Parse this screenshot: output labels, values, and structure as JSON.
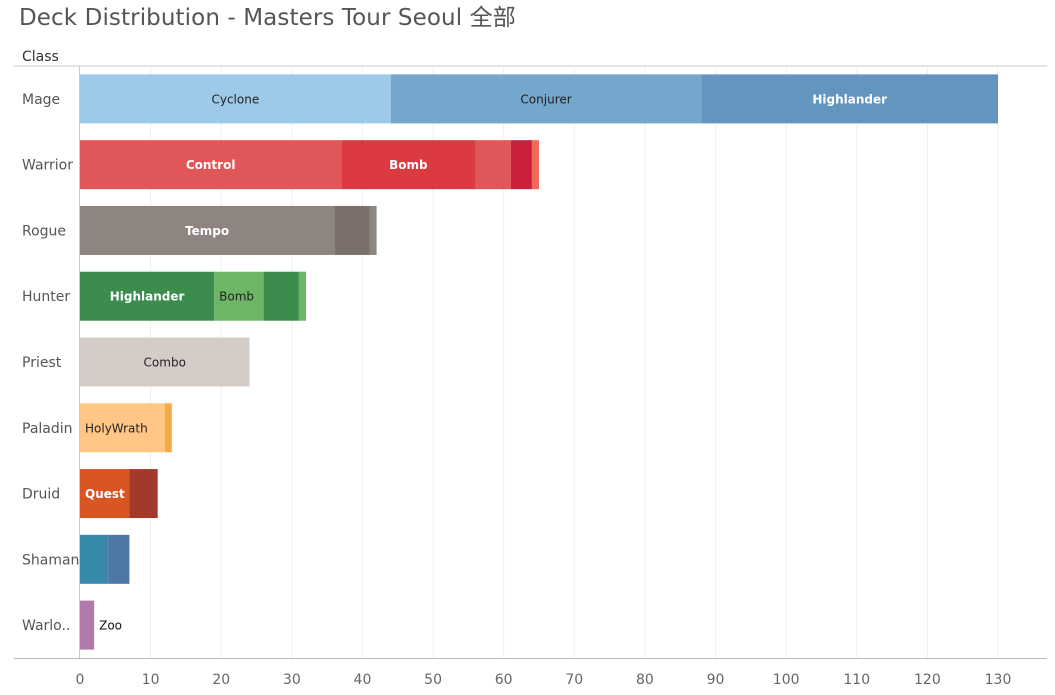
{
  "title": "Deck Distribution - Masters Tour Seoul 全部",
  "chart_data": {
    "type": "bar",
    "orientation": "horizontal",
    "stacked": true,
    "row_header": "Class",
    "xlim": [
      0,
      135
    ],
    "x_ticks": [
      0,
      10,
      20,
      30,
      40,
      50,
      60,
      70,
      80,
      90,
      100,
      110,
      120,
      130
    ],
    "grid": true,
    "categories": [
      {
        "label": "Mage",
        "segments": [
          {
            "value": 44,
            "color": "#9ecae9",
            "label": "Cyclone",
            "label_color": "#222222"
          },
          {
            "value": 44,
            "color": "#75a7cd",
            "label": "Conjurer",
            "label_color": "#222222"
          },
          {
            "value": 42,
            "color": "#6395be",
            "label": "Highlander",
            "label_color": "#ffffff"
          }
        ]
      },
      {
        "label": "Warrior",
        "segments": [
          {
            "value": 37,
            "color": "#e15759",
            "label": "Control",
            "label_color": "#ffffff"
          },
          {
            "value": 19,
            "color": "#db3a40",
            "label": "Bomb",
            "label_color": "#ffffff"
          },
          {
            "value": 5,
            "color": "#e15759",
            "label": ""
          },
          {
            "value": 3,
            "color": "#c9213b",
            "label": ""
          },
          {
            "value": 1,
            "color": "#f26a5a",
            "label": ""
          }
        ]
      },
      {
        "label": "Rogue",
        "segments": [
          {
            "value": 36,
            "color": "#8e8581",
            "label": "Tempo",
            "label_color": "#ffffff"
          },
          {
            "value": 5,
            "color": "#7a6f6b",
            "label": ""
          },
          {
            "value": 1,
            "color": "#8e8581",
            "label": ""
          }
        ]
      },
      {
        "label": "Hunter",
        "segments": [
          {
            "value": 19,
            "color": "#3c8d4d",
            "label": "Highlander",
            "label_color": "#ffffff"
          },
          {
            "value": 7,
            "color": "#6db665",
            "label": "Bomb",
            "label_color": "#222222"
          },
          {
            "value": 5,
            "color": "#3c8d4d",
            "label": ""
          },
          {
            "value": 1,
            "color": "#6db665",
            "label": ""
          }
        ]
      },
      {
        "label": "Priest",
        "segments": [
          {
            "value": 24,
            "color": "#d5ccc8",
            "label": "Combo",
            "label_color": "#222222"
          }
        ]
      },
      {
        "label": "Paladin",
        "segments": [
          {
            "value": 12,
            "color": "#ffc685",
            "label": "HolyWrath",
            "label_color": "#222222"
          },
          {
            "value": 1,
            "color": "#f9a945",
            "label": ""
          }
        ]
      },
      {
        "label": "Druid",
        "segments": [
          {
            "value": 7,
            "color": "#d95524",
            "label": "Quest",
            "label_color": "#ffffff"
          },
          {
            "value": 4,
            "color": "#a3392b",
            "label": ""
          }
        ]
      },
      {
        "label": "Shaman",
        "segments": [
          {
            "value": 4,
            "color": "#378aa9",
            "label": ""
          },
          {
            "value": 3,
            "color": "#4d77a5",
            "label": ""
          }
        ]
      },
      {
        "label": "Warlo..",
        "segments": [
          {
            "value": 2,
            "color": "#b27aab",
            "label": "Zoo",
            "label_color": "#111111",
            "label_outside": true
          }
        ]
      }
    ]
  }
}
